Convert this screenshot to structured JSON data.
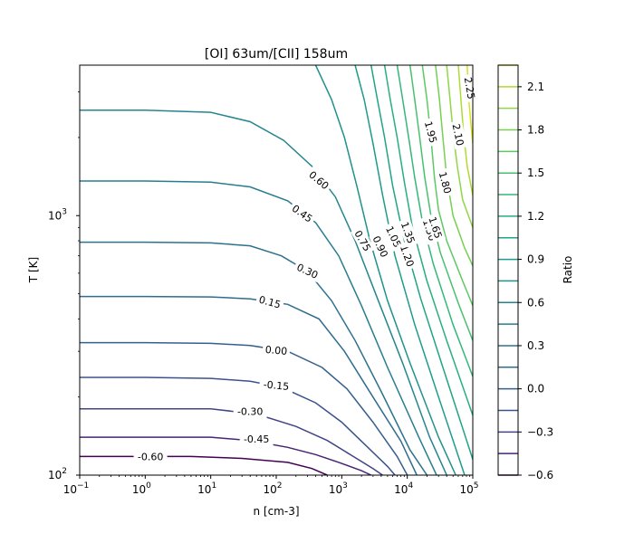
{
  "chart_data": {
    "type": "contour",
    "title": "[OI] 63um/[CII] 158um",
    "xlabel": "n [cm-3]",
    "ylabel": "T [K]",
    "x_scale": "log",
    "y_scale": "log",
    "xlim": [
      0.1,
      100000
    ],
    "ylim": [
      100,
      3800
    ],
    "x_ticks": [
      {
        "value": 0.1,
        "base": "10",
        "exp": "−1"
      },
      {
        "value": 1,
        "base": "10",
        "exp": "0"
      },
      {
        "value": 10,
        "base": "10",
        "exp": "1"
      },
      {
        "value": 100,
        "base": "10",
        "exp": "2"
      },
      {
        "value": 1000,
        "base": "10",
        "exp": "3"
      },
      {
        "value": 10000,
        "base": "10",
        "exp": "4"
      },
      {
        "value": 100000,
        "base": "10",
        "exp": "5"
      }
    ],
    "y_ticks": [
      {
        "value": 100,
        "base": "10",
        "exp": "2"
      },
      {
        "value": 1000,
        "base": "10",
        "exp": "3"
      }
    ],
    "colorbar": {
      "label": "Ratio",
      "min": -0.6,
      "max": 2.25,
      "levels": [
        -0.6,
        -0.45,
        -0.3,
        -0.15,
        0.0,
        0.15,
        0.3,
        0.45,
        0.6,
        0.75,
        0.9,
        1.05,
        1.2,
        1.35,
        1.5,
        1.65,
        1.8,
        1.95,
        2.1,
        2.25
      ],
      "ticks": [
        "−0.6",
        "−0.3",
        "0.0",
        "0.3",
        "0.6",
        "0.9",
        "1.2",
        "1.5",
        "1.8",
        "2.1"
      ]
    },
    "contours": [
      {
        "level": -0.6,
        "label": "-0.60",
        "color": "#440154",
        "points": [
          [
            0.1,
            118
          ],
          [
            1,
            118
          ],
          [
            5,
            118
          ],
          [
            30,
            116
          ],
          [
            150,
            112
          ],
          [
            350,
            106
          ],
          [
            600,
            100
          ]
        ]
      },
      {
        "level": -0.45,
        "label": "-0.45",
        "color": "#482475",
        "points": [
          [
            0.1,
            140
          ],
          [
            1,
            140
          ],
          [
            10,
            140
          ],
          [
            40,
            136
          ],
          [
            150,
            128
          ],
          [
            400,
            120
          ],
          [
            900,
            112
          ],
          [
            2000,
            104
          ],
          [
            2800,
            100
          ]
        ]
      },
      {
        "level": -0.3,
        "label": "-0.30",
        "color": "#414487",
        "points": [
          [
            0.1,
            180
          ],
          [
            1,
            180
          ],
          [
            10,
            180
          ],
          [
            50,
            172
          ],
          [
            200,
            154
          ],
          [
            600,
            136
          ],
          [
            1500,
            118
          ],
          [
            3000,
            106
          ],
          [
            4200,
            100
          ]
        ]
      },
      {
        "level": -0.15,
        "label": "-0.15",
        "color": "#3b528b",
        "points": [
          [
            0.1,
            238
          ],
          [
            1,
            238
          ],
          [
            10,
            236
          ],
          [
            40,
            230
          ],
          [
            120,
            218
          ],
          [
            400,
            190
          ],
          [
            1000,
            160
          ],
          [
            2500,
            128
          ],
          [
            5000,
            108
          ],
          [
            6500,
            100
          ]
        ]
      },
      {
        "level": 0.0,
        "label": "0.00",
        "color": "#355f8d",
        "points": [
          [
            0.1,
            324
          ],
          [
            1,
            324
          ],
          [
            10,
            322
          ],
          [
            40,
            316
          ],
          [
            150,
            300
          ],
          [
            500,
            260
          ],
          [
            1200,
            215
          ],
          [
            3000,
            160
          ],
          [
            7000,
            118
          ],
          [
            10000,
            100
          ]
        ]
      },
      {
        "level": 0.15,
        "label": "0.15",
        "color": "#2f6c8e",
        "points": [
          [
            0.1,
            488
          ],
          [
            1,
            488
          ],
          [
            10,
            486
          ],
          [
            40,
            478
          ],
          [
            150,
            455
          ],
          [
            450,
            400
          ],
          [
            1100,
            300
          ],
          [
            3000,
            200
          ],
          [
            8000,
            135
          ],
          [
            14000,
            100
          ]
        ]
      },
      {
        "level": 0.3,
        "label": "0.30",
        "color": "#2c728e",
        "points": [
          [
            0.1,
            790
          ],
          [
            1,
            790
          ],
          [
            10,
            785
          ],
          [
            40,
            765
          ],
          [
            120,
            700
          ],
          [
            300,
            610
          ],
          [
            700,
            470
          ],
          [
            1600,
            330
          ],
          [
            4000,
            210
          ],
          [
            11000,
            125
          ],
          [
            20000,
            100
          ]
        ]
      },
      {
        "level": 0.45,
        "label": "0.45",
        "color": "#287d8e",
        "points": [
          [
            0.1,
            1360
          ],
          [
            1,
            1360
          ],
          [
            10,
            1345
          ],
          [
            40,
            1290
          ],
          [
            150,
            1140
          ],
          [
            400,
            940
          ],
          [
            900,
            700
          ],
          [
            2000,
            450
          ],
          [
            5000,
            260
          ],
          [
            15000,
            140
          ],
          [
            28000,
            100
          ]
        ]
      },
      {
        "level": 0.6,
        "label": "0.60",
        "color": "#25858e",
        "points": [
          [
            0.1,
            2550
          ],
          [
            1,
            2550
          ],
          [
            10,
            2500
          ],
          [
            40,
            2300
          ],
          [
            130,
            1950
          ],
          [
            350,
            1550
          ],
          [
            800,
            1180
          ],
          [
            1600,
            800
          ],
          [
            3500,
            480
          ],
          [
            8500,
            270
          ],
          [
            22000,
            140
          ],
          [
            40000,
            100
          ]
        ]
      },
      {
        "level": 0.75,
        "label": "0.75",
        "color": "#21918c",
        "points": [
          [
            400,
            3800
          ],
          [
            700,
            2800
          ],
          [
            1100,
            2000
          ],
          [
            1700,
            1300
          ],
          [
            2700,
            800
          ],
          [
            5000,
            470
          ],
          [
            11000,
            270
          ],
          [
            30000,
            140
          ],
          [
            55000,
            100
          ]
        ]
      },
      {
        "level": 0.9,
        "label": "0.90",
        "color": "#1e9b8a",
        "points": [
          [
            1600,
            3800
          ],
          [
            2200,
            2800
          ],
          [
            3000,
            1900
          ],
          [
            4200,
            1200
          ],
          [
            6500,
            700
          ],
          [
            13000,
            380
          ],
          [
            30000,
            200
          ],
          [
            75000,
            100
          ]
        ]
      },
      {
        "level": 1.05,
        "label": "1.05",
        "color": "#20a486",
        "points": [
          [
            2800,
            3800
          ],
          [
            3500,
            2800
          ],
          [
            4500,
            2000
          ],
          [
            6000,
            1300
          ],
          [
            9000,
            800
          ],
          [
            16000,
            480
          ],
          [
            35000,
            260
          ],
          [
            100000,
            115
          ]
        ]
      },
      {
        "level": 1.2,
        "label": "1.20",
        "color": "#28ae80",
        "points": [
          [
            4500,
            3800
          ],
          [
            5500,
            2800
          ],
          [
            7000,
            2000
          ],
          [
            9000,
            1350
          ],
          [
            12000,
            900
          ],
          [
            20000,
            560
          ],
          [
            40000,
            330
          ],
          [
            100000,
            170
          ]
        ]
      },
      {
        "level": 1.35,
        "label": "1.35",
        "color": "#35b779",
        "points": [
          [
            7000,
            3800
          ],
          [
            8500,
            2800
          ],
          [
            10500,
            2000
          ],
          [
            13000,
            1400
          ],
          [
            17000,
            950
          ],
          [
            25000,
            650
          ],
          [
            50000,
            380
          ],
          [
            100000,
            240
          ]
        ]
      },
      {
        "level": 1.5,
        "label": "1.50",
        "color": "#48c16e",
        "points": [
          [
            11000,
            3800
          ],
          [
            13000,
            2800
          ],
          [
            15500,
            2000
          ],
          [
            18500,
            1400
          ],
          [
            23000,
            1000
          ],
          [
            32000,
            720
          ],
          [
            60000,
            460
          ],
          [
            100000,
            330
          ]
        ]
      },
      {
        "level": 1.65,
        "label": "1.65",
        "color": "#5ec962",
        "points": [
          [
            17000,
            3800
          ],
          [
            20000,
            2800
          ],
          [
            23000,
            2000
          ],
          [
            26000,
            1400
          ],
          [
            30000,
            1050
          ],
          [
            40000,
            800
          ],
          [
            70000,
            560
          ],
          [
            100000,
            450
          ]
        ]
      },
      {
        "level": 1.8,
        "label": "1.80",
        "color": "#75d054",
        "points": [
          [
            27000,
            3800
          ],
          [
            31000,
            2800
          ],
          [
            35000,
            2000
          ],
          [
            40000,
            1400
          ],
          [
            50000,
            1000
          ],
          [
            75000,
            750
          ],
          [
            100000,
            640
          ]
        ]
      },
      {
        "level": 1.95,
        "label": "1.95",
        "color": "#8fd744",
        "points": [
          [
            40000,
            3800
          ],
          [
            45000,
            2800
          ],
          [
            50000,
            2100
          ],
          [
            58000,
            1550
          ],
          [
            70000,
            1150
          ],
          [
            100000,
            900
          ]
        ]
      },
      {
        "level": 2.1,
        "label": "2.10",
        "color": "#addc30",
        "points": [
          [
            60000,
            3800
          ],
          [
            66000,
            2800
          ],
          [
            72000,
            2100
          ],
          [
            82000,
            1550
          ],
          [
            100000,
            1200
          ]
        ]
      },
      {
        "level": 2.25,
        "label": "2.25",
        "color": "#d8e219",
        "points": [
          [
            82000,
            3800
          ],
          [
            87000,
            2800
          ],
          [
            93000,
            2300
          ],
          [
            100000,
            1900
          ]
        ]
      }
    ],
    "contour_labels": [
      {
        "text": "-0.60",
        "x": 1.2,
        "y": 118,
        "color": "#440154",
        "angle": 0
      },
      {
        "text": "-0.45",
        "x": 50,
        "y": 138,
        "color": "#482475",
        "angle": 0
      },
      {
        "text": "-0.30",
        "x": 40,
        "y": 176,
        "color": "#414487",
        "angle": 0
      },
      {
        "text": "-0.15",
        "x": 100,
        "y": 222,
        "color": "#3b528b",
        "angle": 5
      },
      {
        "text": "0.00",
        "x": 100,
        "y": 303,
        "color": "#355f8d",
        "angle": 5
      },
      {
        "text": "0.15",
        "x": 80,
        "y": 465,
        "color": "#2f6c8e",
        "angle": 15
      },
      {
        "text": "0.30",
        "x": 300,
        "y": 612,
        "color": "#2c728e",
        "angle": 25
      },
      {
        "text": "0.45",
        "x": 250,
        "y": 1020,
        "color": "#287d8e",
        "angle": 35
      },
      {
        "text": "0.60",
        "x": 450,
        "y": 1370,
        "color": "#25858e",
        "angle": 40
      },
      {
        "text": "0.75",
        "x": 2100,
        "y": 800,
        "color": "#21918c",
        "angle": 60
      },
      {
        "text": "0.90",
        "x": 3900,
        "y": 760,
        "color": "#1e9b8a",
        "angle": 65
      },
      {
        "text": "1.05",
        "x": 6200,
        "y": 830,
        "color": "#20a486",
        "angle": 65
      },
      {
        "text": "1.20",
        "x": 10000,
        "y": 700,
        "color": "#28ae80",
        "angle": 70
      },
      {
        "text": "1.35",
        "x": 10300,
        "y": 860,
        "color": "#35b779",
        "angle": 70
      },
      {
        "text": "1.50",
        "x": 22000,
        "y": 880,
        "color": "#48c16e",
        "angle": 72
      },
      {
        "text": "1.65",
        "x": 27000,
        "y": 900,
        "color": "#5ec962",
        "angle": 72
      },
      {
        "text": "1.80",
        "x": 38000,
        "y": 1340,
        "color": "#75d054",
        "angle": 75
      },
      {
        "text": "1.95",
        "x": 23000,
        "y": 2100,
        "color": "#8fd744",
        "angle": 75
      },
      {
        "text": "2.10",
        "x": 60000,
        "y": 2050,
        "color": "#addc30",
        "angle": 78
      },
      {
        "text": "2.25",
        "x": 90000,
        "y": 3100,
        "color": "#d8e219",
        "angle": 80
      }
    ]
  }
}
